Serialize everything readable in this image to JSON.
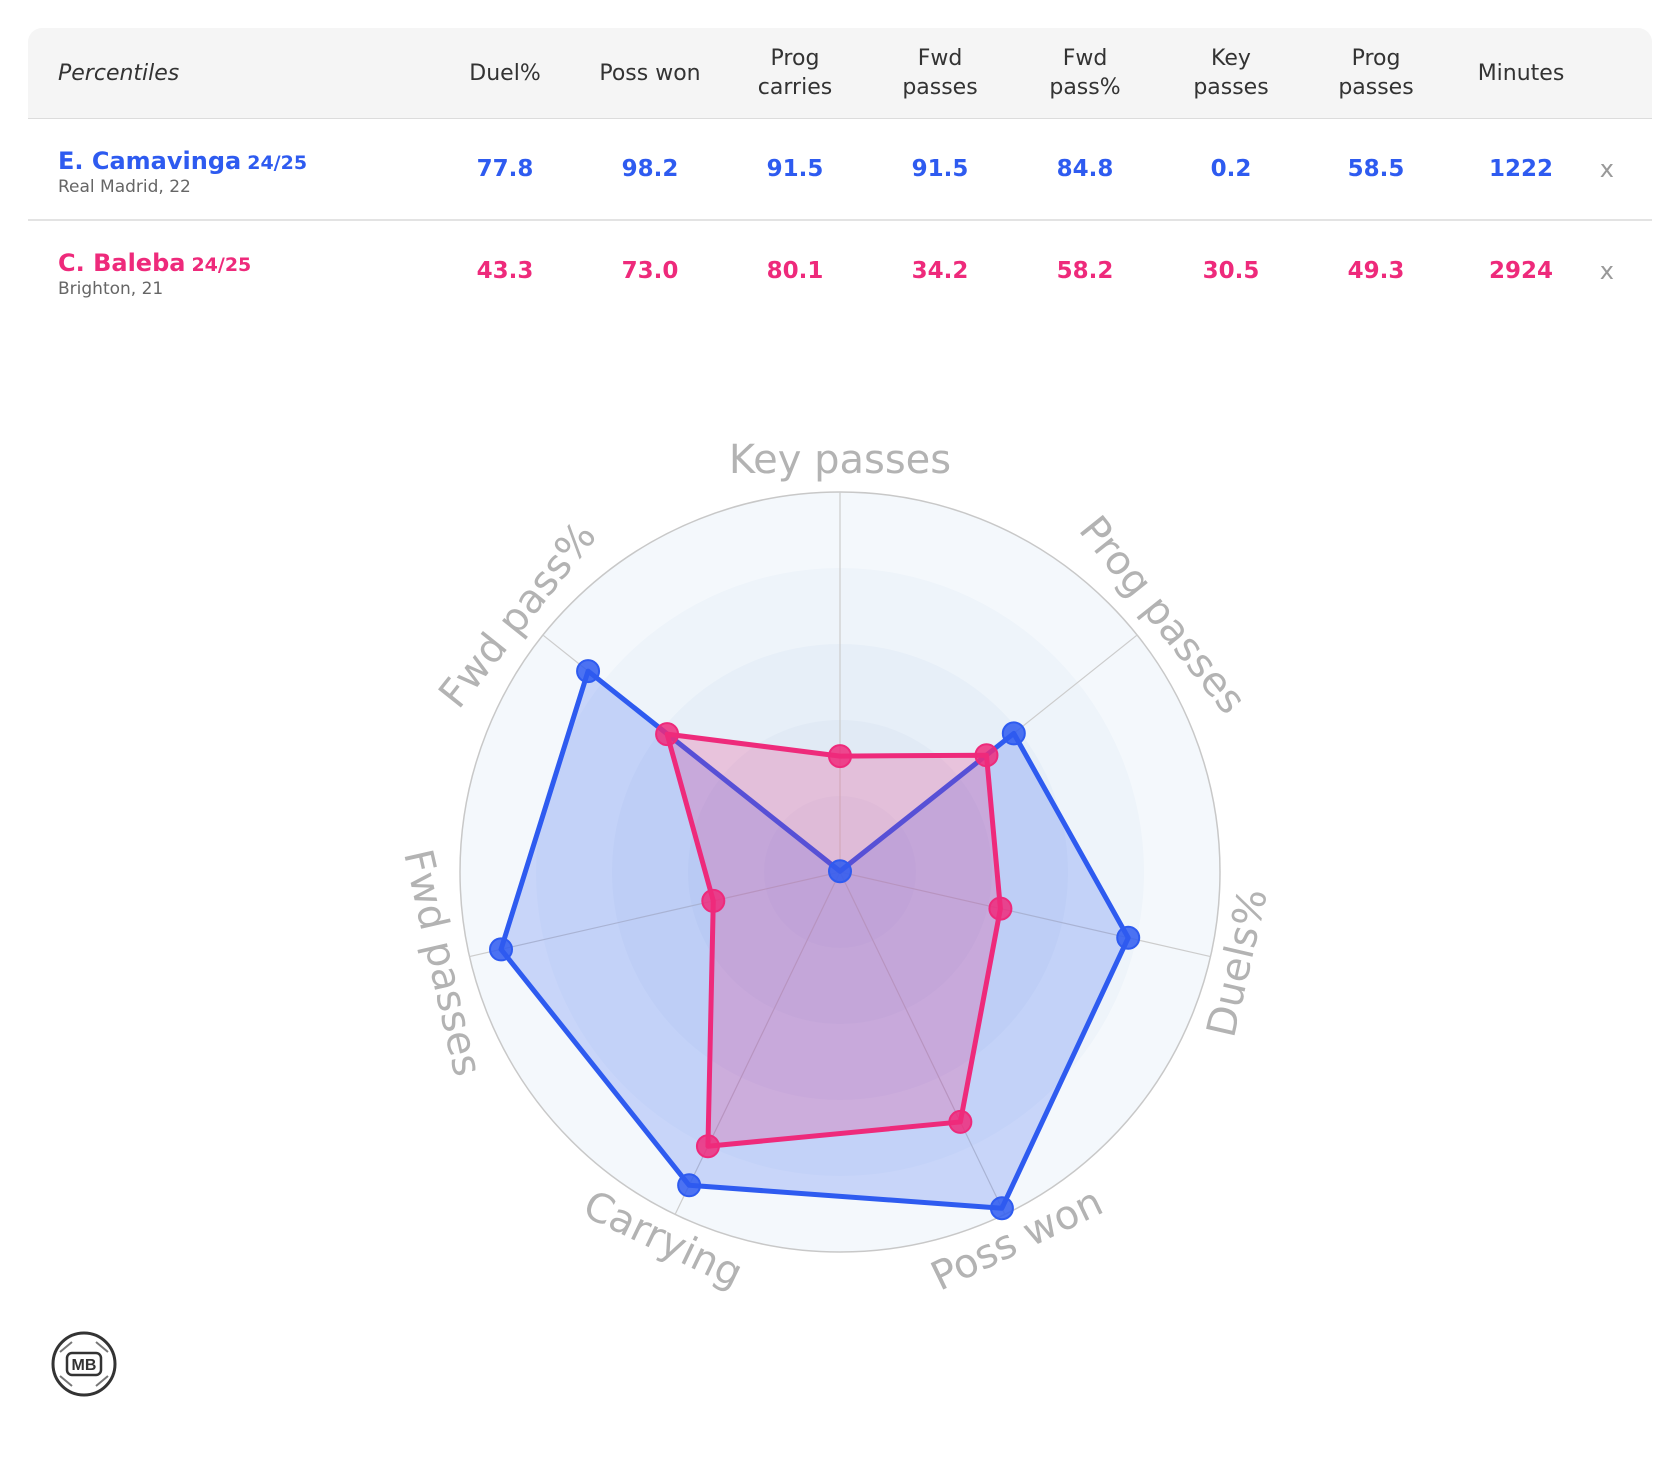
{
  "table": {
    "header_label": "Percentiles",
    "columns": [
      {
        "line1": "Duel%",
        "line2": ""
      },
      {
        "line1": "Poss won",
        "line2": ""
      },
      {
        "line1": "Prog",
        "line2": "carries"
      },
      {
        "line1": "Fwd",
        "line2": "passes"
      },
      {
        "line1": "Fwd",
        "line2": "pass%"
      },
      {
        "line1": "Key",
        "line2": "passes"
      },
      {
        "line1": "Prog",
        "line2": "passes"
      },
      {
        "line1": "Minutes",
        "line2": ""
      }
    ],
    "rows": [
      {
        "name": "E. Camavinga",
        "season": "24/25",
        "sub": "Real Madrid, 22",
        "values": [
          "77.8",
          "98.2",
          "91.5",
          "91.5",
          "84.8",
          "0.2",
          "58.5",
          "1222"
        ],
        "remove": "x",
        "color": "#2e5bf0"
      },
      {
        "name": "C. Baleba",
        "season": "24/25",
        "sub": "Brighton, 21",
        "values": [
          "43.3",
          "73.0",
          "80.1",
          "34.2",
          "58.2",
          "30.5",
          "49.3",
          "2924"
        ],
        "remove": "x",
        "color": "#ee2a7b"
      }
    ]
  },
  "chart_data": {
    "type": "radar",
    "axes": [
      "Key passes",
      "Prog passes",
      "Duels%",
      "Poss won",
      "Carrying",
      "Fwd passes",
      "Fwd pass%"
    ],
    "range": [
      0,
      100
    ],
    "series": [
      {
        "name": "E. Camavinga",
        "color": "#2e5bf0",
        "values": [
          0.2,
          58.5,
          77.8,
          98.2,
          91.5,
          91.5,
          84.8
        ]
      },
      {
        "name": "C. Baleba",
        "color": "#ee2a7b",
        "values": [
          30.5,
          49.3,
          43.3,
          73.0,
          80.1,
          34.2,
          58.2
        ]
      }
    ]
  },
  "logo": {
    "text": "MB"
  }
}
